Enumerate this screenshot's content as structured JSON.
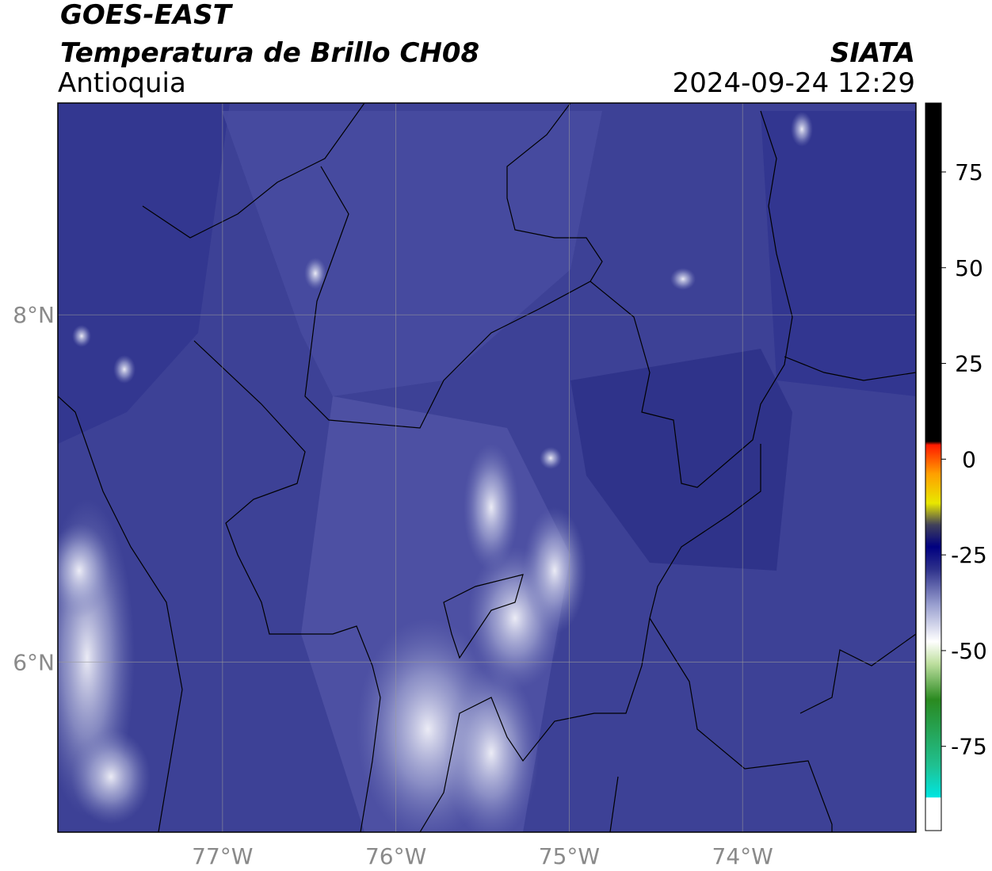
{
  "header": {
    "satellite": "GOES-EAST",
    "product": "Temperatura de Brillo CH08",
    "region": "Antioquia",
    "source": "SIATA",
    "timestamp": "2024-09-24 12:29"
  },
  "map": {
    "lonlim": [
      -77.95,
      -73.0
    ],
    "latlim": [
      5.02,
      9.22
    ],
    "lon_ticks": [
      {
        "value": -77,
        "label": "77°W"
      },
      {
        "value": -76,
        "label": "76°W"
      },
      {
        "value": -75,
        "label": "75°W"
      },
      {
        "value": -74,
        "label": "74°W"
      }
    ],
    "lat_ticks": [
      {
        "value": 8,
        "label": "8°N"
      },
      {
        "value": 6,
        "label": "6°N"
      }
    ],
    "grid": true
  },
  "colorbar": {
    "lim": [
      -97,
      93
    ],
    "ticks": [
      75,
      50,
      25,
      0,
      -25,
      -50,
      -75
    ]
  }
}
